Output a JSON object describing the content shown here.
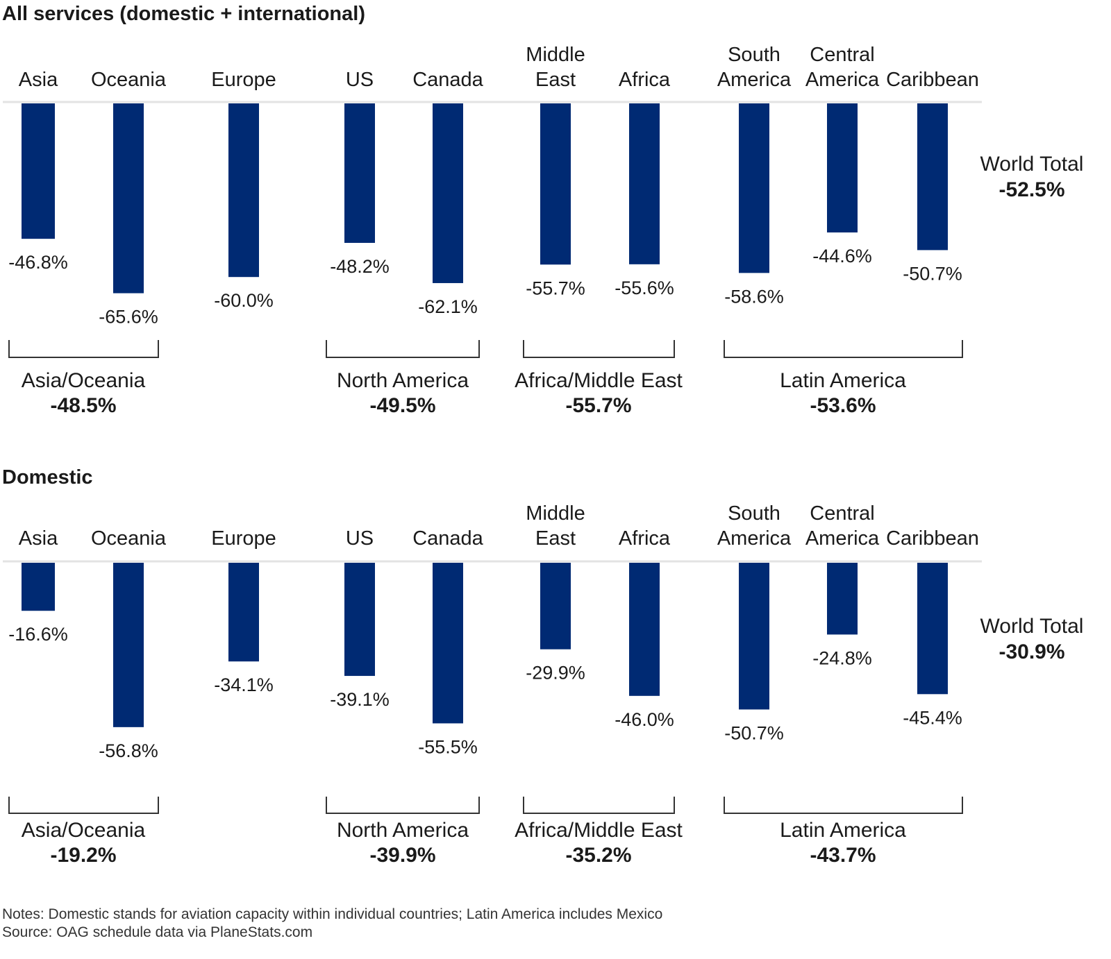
{
  "colors": {
    "bar": "#002a73",
    "axis": "#e3e3e3",
    "bracket": "#333333",
    "text": "#1a1a1a"
  },
  "notes": "Notes: Domestic stands for aviation capacity within individual countries; Latin America includes Mexico",
  "source": "Source: OAG schedule data via PlaneStats.com",
  "chart_data": [
    {
      "type": "bar",
      "title": "All services (domestic + international)",
      "categories": [
        [
          "Asia"
        ],
        [
          "Oceania"
        ],
        [
          "Europe"
        ],
        [
          "US"
        ],
        [
          "Canada"
        ],
        [
          "Middle",
          "East"
        ],
        [
          "Africa"
        ],
        [
          "South",
          "America"
        ],
        [
          "Central",
          "America"
        ],
        [
          "Caribbean"
        ]
      ],
      "values": [
        -46.8,
        -65.6,
        -60.0,
        -48.2,
        -62.1,
        -55.7,
        -55.6,
        -58.6,
        -44.6,
        -50.7
      ],
      "value_labels": [
        "-46.8%",
        "-65.6%",
        "-60.0%",
        "-48.2%",
        "-62.1%",
        "-55.7%",
        "-55.6%",
        "-58.6%",
        "-44.6%",
        "-50.7%"
      ],
      "groups": [
        {
          "name": "Asia/Oceania",
          "value": "-48.5%",
          "members": [
            0,
            1
          ]
        },
        {
          "name": "North America",
          "value": "-49.5%",
          "members": [
            3,
            4
          ]
        },
        {
          "name": "Africa/Middle East",
          "value": "-55.7%",
          "members": [
            5,
            6
          ]
        },
        {
          "name": "Latin America",
          "value": "-53.6%",
          "members": [
            7,
            8,
            9
          ]
        }
      ],
      "world_total": {
        "label": "World Total",
        "value": "-52.5%"
      },
      "ylim": [
        -70,
        0
      ]
    },
    {
      "type": "bar",
      "title": "Domestic",
      "categories": [
        [
          "Asia"
        ],
        [
          "Oceania"
        ],
        [
          "Europe"
        ],
        [
          "US"
        ],
        [
          "Canada"
        ],
        [
          "Middle",
          "East"
        ],
        [
          "Africa"
        ],
        [
          "South",
          "America"
        ],
        [
          "Central",
          "America"
        ],
        [
          "Caribbean"
        ]
      ],
      "values": [
        -16.6,
        -56.8,
        -34.1,
        -39.1,
        -55.5,
        -29.9,
        -46.0,
        -50.7,
        -24.8,
        -45.4
      ],
      "value_labels": [
        "-16.6%",
        "-56.8%",
        "-34.1%",
        "-39.1%",
        "-55.5%",
        "-29.9%",
        "-46.0%",
        "-50.7%",
        "-24.8%",
        "-45.4%"
      ],
      "groups": [
        {
          "name": "Asia/Oceania",
          "value": "-19.2%",
          "members": [
            0,
            1
          ]
        },
        {
          "name": "North America",
          "value": "-39.9%",
          "members": [
            3,
            4
          ]
        },
        {
          "name": "Africa/Middle East",
          "value": "-35.2%",
          "members": [
            5,
            6
          ]
        },
        {
          "name": "Latin America",
          "value": "-43.7%",
          "members": [
            7,
            8,
            9
          ]
        }
      ],
      "world_total": {
        "label": "World Total",
        "value": "-30.9%"
      },
      "ylim": [
        -70,
        0
      ]
    }
  ]
}
